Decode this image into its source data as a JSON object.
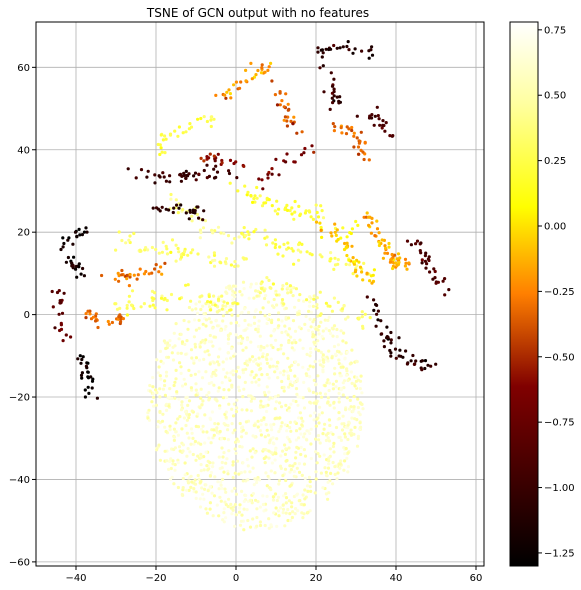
{
  "chart_data": {
    "type": "scatter",
    "title": "TSNE of GCN output with no features",
    "xlabel": "",
    "ylabel": "",
    "xlim": [
      -50,
      62
    ],
    "ylim": [
      -61,
      71
    ],
    "x_ticks": [
      -40,
      -20,
      0,
      20,
      40,
      60
    ],
    "y_ticks": [
      -60,
      -40,
      -20,
      0,
      20,
      40,
      60
    ],
    "grid": true,
    "colormap": "afmhot",
    "colorbar": {
      "range": [
        -1.3,
        0.78
      ],
      "ticks": [
        0.75,
        0.5,
        0.25,
        0.0,
        -0.25,
        -0.5,
        -0.75,
        -1.0,
        -1.25
      ],
      "tick_labels": [
        "0.75",
        "0.50",
        "0.25",
        "0.00",
        "−0.25",
        "−0.50",
        "−0.75",
        "−1.00",
        "−1.25"
      ]
    },
    "structure": {
      "central_cloud": {
        "center": [
          5,
          -22
        ],
        "spread": [
          17,
          16
        ],
        "n": 1400,
        "value_range": [
          0.45,
          0.7
        ]
      },
      "outer_arcs": [
        {
          "path": [
            [
              -38,
              21
            ],
            [
              -42,
              17
            ],
            [
              -41,
              12
            ],
            [
              -39,
              9
            ]
          ],
          "value": -1.2,
          "n": 35
        },
        {
          "path": [
            [
              -38,
              -10
            ],
            [
              -37,
              -15
            ],
            [
              -37,
              -20
            ]
          ],
          "value": -1.25,
          "n": 25
        },
        {
          "path": [
            [
              -44,
              6
            ],
            [
              -44,
              -2
            ],
            [
              -42,
              -8
            ]
          ],
          "value": -0.8,
          "n": 20
        },
        {
          "path": [
            [
              -27,
              34
            ],
            [
              -18,
              33
            ],
            [
              -10,
              34
            ],
            [
              0,
              34
            ]
          ],
          "value": -1.0,
          "n": 45
        },
        {
          "path": [
            [
              -20,
              26
            ],
            [
              -13,
              25
            ],
            [
              -5,
              24
            ]
          ],
          "value": -1.1,
          "n": 25
        },
        {
          "path": [
            [
              20,
              64
            ],
            [
              28,
              65
            ],
            [
              34,
              63
            ]
          ],
          "value": -1.1,
          "n": 25
        },
        {
          "path": [
            [
              22,
              60
            ],
            [
              24,
              53
            ],
            [
              27,
              50
            ]
          ],
          "value": -1.0,
          "n": 20
        },
        {
          "path": [
            [
              31,
              49
            ],
            [
              36,
              47
            ],
            [
              40,
              44
            ]
          ],
          "value": -0.9,
          "n": 20
        },
        {
          "path": [
            [
              33,
              5
            ],
            [
              37,
              -5
            ],
            [
              40,
              -10
            ],
            [
              45,
              -12
            ],
            [
              48,
              -12
            ]
          ],
          "value": -1.1,
          "n": 50
        },
        {
          "path": [
            [
              44,
              18
            ],
            [
              48,
              14
            ],
            [
              50,
              8
            ],
            [
              53,
              7
            ]
          ],
          "value": -0.9,
          "n": 30
        },
        {
          "path": [
            [
              -32,
              10
            ],
            [
              -27,
              9
            ],
            [
              -22,
              10
            ],
            [
              -18,
              12
            ]
          ],
          "value": -0.3,
          "n": 30
        },
        {
          "path": [
            [
              -38,
              0
            ],
            [
              -32,
              -2
            ],
            [
              -26,
              0
            ]
          ],
          "value": -0.3,
          "n": 25
        },
        {
          "path": [
            [
              -5,
              53
            ],
            [
              0,
              55
            ],
            [
              5,
              59
            ],
            [
              10,
              60
            ]
          ],
          "value": -0.2,
          "n": 30
        },
        {
          "path": [
            [
              10,
              55
            ],
            [
              13,
              48
            ],
            [
              15,
              44
            ]
          ],
          "value": -0.4,
          "n": 25
        },
        {
          "path": [
            [
              25,
              46
            ],
            [
              30,
              43
            ],
            [
              32,
              38
            ]
          ],
          "value": -0.35,
          "n": 30
        },
        {
          "path": [
            [
              32,
              25
            ],
            [
              36,
              18
            ],
            [
              40,
              13
            ],
            [
              43,
              12
            ]
          ],
          "value": -0.15,
          "n": 55
        },
        {
          "path": [
            [
              20,
              22
            ],
            [
              26,
              18
            ],
            [
              30,
              12
            ],
            [
              35,
              8
            ]
          ],
          "value": -0.05,
          "n": 45
        },
        {
          "path": [
            [
              -10,
              40
            ],
            [
              -4,
              38
            ],
            [
              2,
              36
            ]
          ],
          "value": -0.6,
          "n": 20
        },
        {
          "path": [
            [
              5,
              30
            ],
            [
              12,
              38
            ],
            [
              20,
              40
            ]
          ],
          "value": -0.7,
          "n": 20
        }
      ],
      "inner_bands": [
        {
          "path": [
            [
              -28,
              18
            ],
            [
              -18,
              16
            ],
            [
              -8,
              14
            ],
            [
              2,
              12
            ]
          ],
          "value": 0.35,
          "n": 60
        },
        {
          "path": [
            [
              -30,
              2
            ],
            [
              -20,
              4
            ],
            [
              -10,
              4
            ],
            [
              0,
              2
            ]
          ],
          "value": 0.3,
          "n": 55
        },
        {
          "path": [
            [
              -20,
              40
            ],
            [
              -12,
              45
            ],
            [
              -6,
              49
            ]
          ],
          "value": 0.25,
          "n": 30
        },
        {
          "path": [
            [
              0,
              30
            ],
            [
              10,
              26
            ],
            [
              20,
              24
            ],
            [
              30,
              20
            ]
          ],
          "value": 0.2,
          "n": 60
        },
        {
          "path": [
            [
              2,
              20
            ],
            [
              12,
              16
            ],
            [
              22,
              14
            ],
            [
              32,
              10
            ]
          ],
          "value": 0.3,
          "n": 60
        },
        {
          "path": [
            [
              5,
              8
            ],
            [
              15,
              4
            ],
            [
              25,
              2
            ],
            [
              35,
              -2
            ]
          ],
          "value": 0.35,
          "n": 50
        },
        {
          "path": [
            [
              -16,
              28
            ],
            [
              -8,
              22
            ],
            [
              0,
              18
            ]
          ],
          "value": 0.45,
          "n": 35
        }
      ]
    }
  }
}
